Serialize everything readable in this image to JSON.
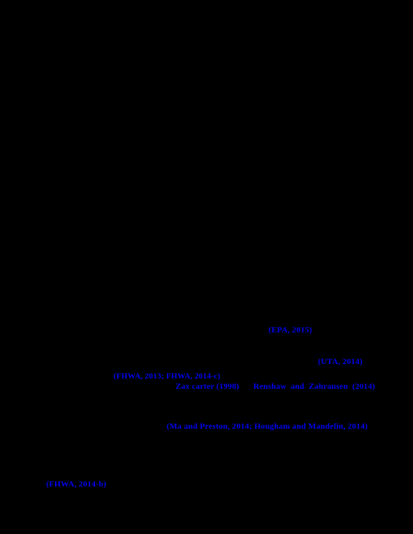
{
  "page": {
    "background_color": "#000000",
    "link_color": "#0000ee",
    "description": "Scholarly paper page rendered black with only hyperlink citations visible"
  },
  "citations": [
    {
      "text": "(EPA, 2015)"
    },
    {
      "text": "(UTA, 2014)"
    },
    {
      "text": "(FHWA, 2013;  FHWA, 2014-c)"
    },
    {
      "text": "Zax carter (1998)"
    },
    {
      "text": "Renshaw and Zahransen (2014)"
    },
    {
      "text": "(Ma and Preston, 2014; Hougham and Mandelin, 2014)"
    },
    {
      "text": "(FHWA, 2014-b)"
    }
  ]
}
